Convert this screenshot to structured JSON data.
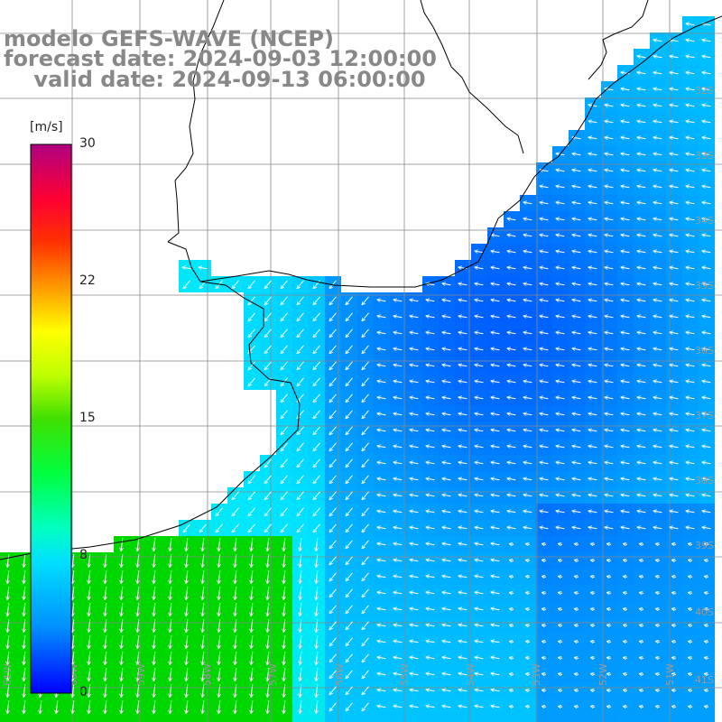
{
  "header": {
    "line1": "modelo GEFS-WAVE (NCEP)",
    "line2": "forecast date: 2024-09-03 12:00:00",
    "line3": "    valid date: 2024-09-13 06:00:00"
  },
  "colorbar": {
    "unit": "[m/s]",
    "ticks": [
      "30",
      "22",
      "15",
      "8",
      "0"
    ],
    "tick_values": [
      30,
      22,
      15,
      8,
      0
    ],
    "range": [
      0,
      30
    ],
    "stops": [
      "#0000ff",
      "#00b0ff",
      "#00ffff",
      "#00ff40",
      "#00c000",
      "#80ff00",
      "#ffff00",
      "#ff9900",
      "#ff3300",
      "#ff0000",
      "#ff0066",
      "#b00080"
    ]
  },
  "grid": {
    "lat_labels": [
      "32S",
      "33S",
      "34S",
      "35S",
      "36S",
      "37S",
      "38S",
      "39S",
      "40S",
      "41S"
    ],
    "lon_labels": [
      "61W",
      "60W",
      "59W",
      "58W",
      "57W",
      "56W",
      "55W",
      "54W",
      "53W",
      "52W",
      "51W"
    ]
  },
  "field": {
    "variable": "wind speed and direction",
    "land_color": "#ffffff",
    "coast_color": "#000000",
    "arrow_color": "#ffffff",
    "description_colors": {
      "shelf": "#00c8ff",
      "open_ocean": "#0050ff",
      "southwest": "#00e880"
    }
  }
}
